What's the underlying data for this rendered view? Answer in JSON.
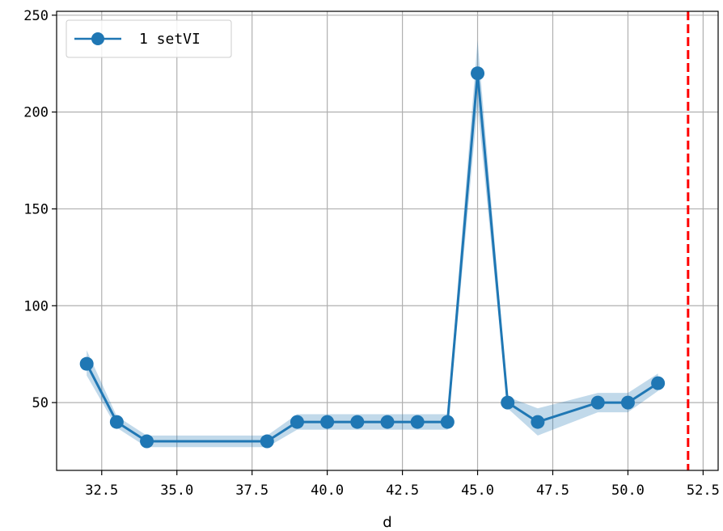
{
  "chart_data": {
    "type": "line",
    "title": "",
    "xlabel": "d",
    "ylabel": "",
    "xlim": [
      31.0,
      53.0
    ],
    "ylim": [
      15,
      252
    ],
    "xticks": [
      32.5,
      35.0,
      37.5,
      40.0,
      42.5,
      45.0,
      47.5,
      50.0,
      52.5
    ],
    "xtick_labels": [
      "32.5",
      "35.0",
      "37.5",
      "40.0",
      "42.5",
      "45.0",
      "47.5",
      "50.0",
      "52.5"
    ],
    "yticks": [
      50,
      100,
      150,
      200,
      250
    ],
    "ytick_labels": [
      "50",
      "100",
      "150",
      "200",
      "250"
    ],
    "grid": true,
    "legend_position": "top-left",
    "series": [
      {
        "name": "1 setVI",
        "color": "#1f77b4",
        "band_color": "#1f77b4",
        "x": [
          32,
          33,
          34,
          38,
          39,
          40,
          41,
          42,
          43,
          44,
          45,
          46,
          47,
          49,
          50,
          51
        ],
        "y": [
          70,
          40,
          30,
          30,
          40,
          40,
          40,
          40,
          40,
          40,
          220,
          50,
          40,
          50,
          50,
          60
        ],
        "lower": [
          64,
          37,
          27,
          27,
          36,
          36,
          36,
          36,
          36,
          36,
          203,
          47,
          33,
          45,
          45,
          56
        ],
        "upper": [
          77,
          43,
          33,
          33,
          44,
          44,
          44,
          44,
          44,
          44,
          237,
          53,
          47,
          55,
          55,
          65
        ]
      }
    ],
    "vlines": [
      {
        "x": 52,
        "color": "#ff0000",
        "style": "dashed"
      }
    ]
  }
}
